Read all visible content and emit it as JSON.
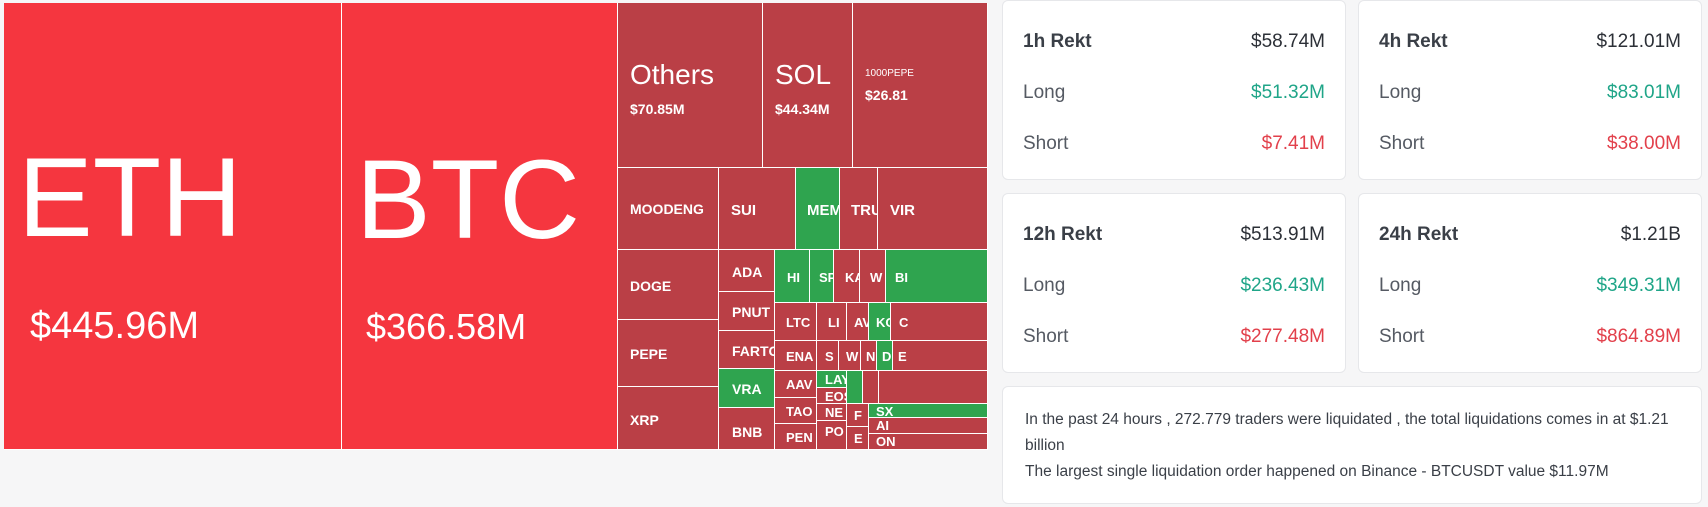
{
  "treemap": {
    "eth": {
      "symbol": "ETH",
      "value": "$445.96M"
    },
    "btc": {
      "symbol": "BTC",
      "value": "$366.58M"
    },
    "others": {
      "symbol": "Others",
      "value": "$70.85M"
    },
    "sol": {
      "symbol": "SOL",
      "value": "$44.34M"
    },
    "pepe1000": {
      "symbol": "1000PEPE",
      "value": "$26.81"
    },
    "moodeng": "MOODENG",
    "doge": "DOGE",
    "pepe": "PEPE",
    "xrp": "XRP",
    "sui": "SUI",
    "mem": "MEM",
    "tru": "TRU",
    "vir": "VIR",
    "ada": "ADA",
    "pnut": "PNUT",
    "fartc": "FARTC",
    "vra": "VRA",
    "bnb": "BNB",
    "hi": "HI",
    "sp": "SP",
    "ka": "KA",
    "w": "W",
    "bi": "BI",
    "ltc": "LTC",
    "li": "LI",
    "av": "AV",
    "ko": "KO",
    "c": "C",
    "ena": "ENA",
    "s": "S",
    "w2": "W",
    "n": "N",
    "d": "D",
    "e": "E",
    "aav": "AAV",
    "lay": "LAY",
    "eos": "EOS",
    "tao": "TAO",
    "ne": "NE",
    "f": "F",
    "sx": "SX",
    "pen": "PEN",
    "po": "PO",
    "e2": "E",
    "ai": "AI",
    "on": "ON"
  },
  "cards": {
    "h1": {
      "title": "1h Rekt",
      "total": "$58.74M",
      "long_label": "Long",
      "long": "$51.32M",
      "short_label": "Short",
      "short": "$7.41M"
    },
    "h4": {
      "title": "4h Rekt",
      "total": "$121.01M",
      "long_label": "Long",
      "long": "$83.01M",
      "short_label": "Short",
      "short": "$38.00M"
    },
    "h12": {
      "title": "12h Rekt",
      "total": "$513.91M",
      "long_label": "Long",
      "long": "$236.43M",
      "short_label": "Short",
      "short": "$277.48M"
    },
    "h24": {
      "title": "24h Rekt",
      "total": "$1.21B",
      "long_label": "Long",
      "long": "$349.31M",
      "short_label": "Short",
      "short": "$864.89M"
    }
  },
  "summary": {
    "line1": "In the past 24 hours , 272.779 traders were liquidated , the total liquidations comes in at $1.21 billion",
    "line2": "The largest single liquidation order happened on Binance - BTCUSDT value $11.97M"
  },
  "colors": {
    "loss": "#ba3f46",
    "loss_bright": "#f5363f",
    "gain": "#2fa44f",
    "long_text": "#1fa588",
    "short_text": "#e2404b"
  }
}
